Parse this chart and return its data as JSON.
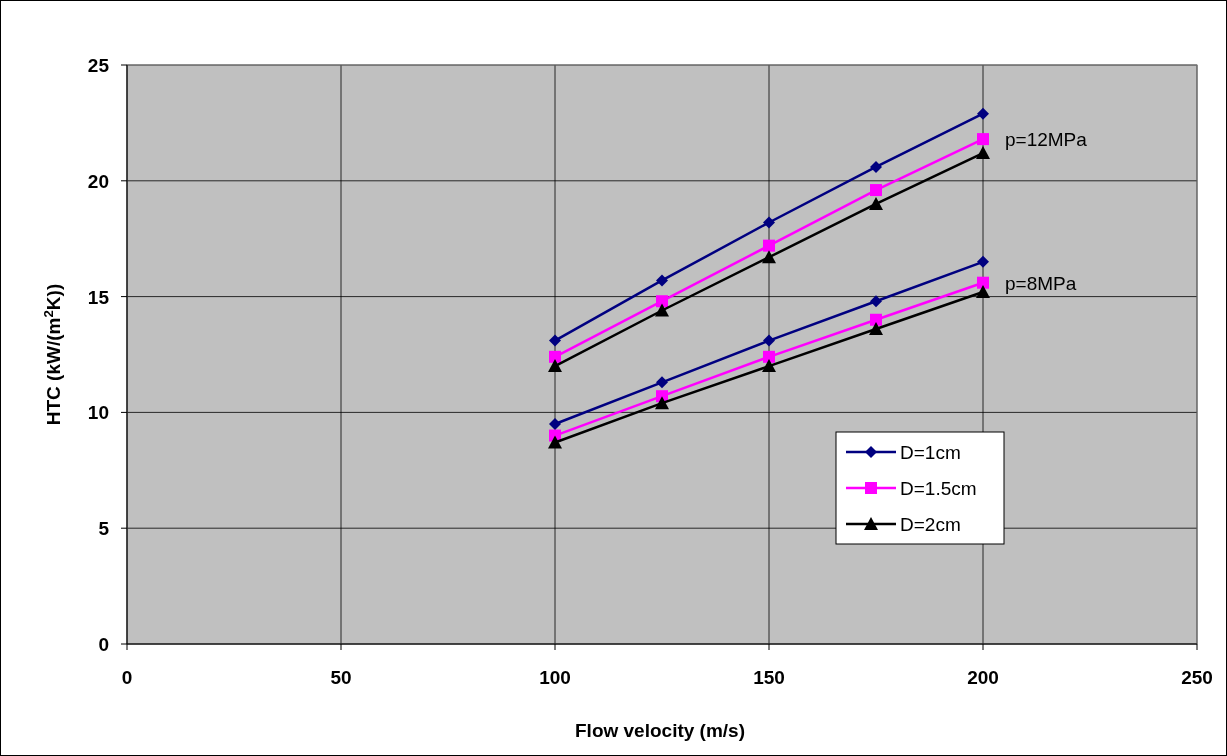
{
  "chart_data": {
    "type": "line",
    "xlabel": "Flow velocity (m/s)",
    "ylabel": "HTC (kW/(m$^{2}$K))",
    "x": [
      100,
      125,
      150,
      175,
      200
    ],
    "series": [
      {
        "name": "D=1cm",
        "color": "#000080",
        "marker": "diamond",
        "values": [
          13.1,
          15.7,
          18.2,
          20.6,
          22.9
        ]
      },
      {
        "name": "D=1.5cm",
        "color": "#ff00ff",
        "marker": "square",
        "values": [
          12.4,
          14.8,
          17.2,
          19.6,
          21.8
        ]
      },
      {
        "name": "D=2cm",
        "color": "#000000",
        "marker": "triangle",
        "values": [
          12.0,
          14.4,
          16.7,
          19.0,
          21.2
        ]
      },
      {
        "color": "#000080",
        "marker": "diamond",
        "values": [
          9.5,
          11.3,
          13.1,
          14.8,
          16.5
        ]
      },
      {
        "color": "#ff00ff",
        "marker": "square",
        "values": [
          9.0,
          10.7,
          12.4,
          14.0,
          15.6
        ]
      },
      {
        "color": "#000000",
        "marker": "triangle",
        "values": [
          8.7,
          10.4,
          12.0,
          13.6,
          15.2
        ]
      }
    ],
    "xlim": [
      0,
      250
    ],
    "xticks": [
      0,
      50,
      100,
      150,
      200,
      250
    ],
    "ylim": [
      0,
      25
    ],
    "yticks": [
      0,
      5,
      10,
      15,
      20,
      25
    ],
    "grid": true,
    "legend": "bottom right",
    "annotations": [
      {
        "text": "p=12MPa",
        "x": 200,
        "y": 21.8
      },
      {
        "text": "p=8MPa",
        "x": 200,
        "y": 15.6
      }
    ]
  }
}
